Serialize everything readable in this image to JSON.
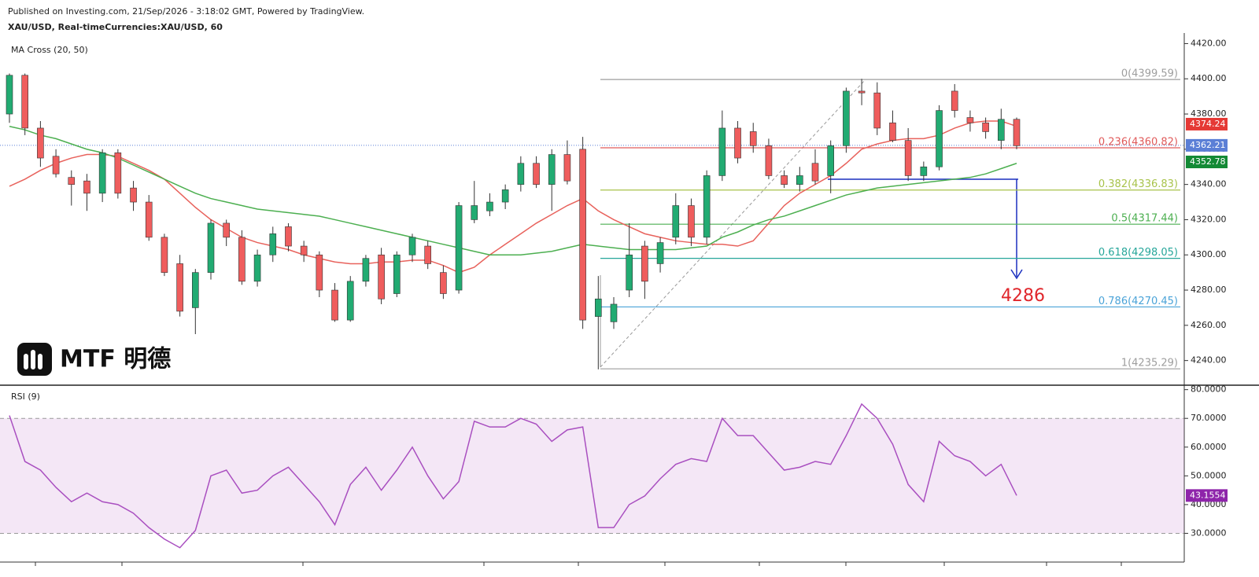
{
  "header": {
    "line1": "Published on Investing.com, 21/Sep/2026 - 3:18:02 GMT, Powered by TradingView.",
    "line2": "XAU/USD, Real-timeCurrencies:XAU/USD, 60"
  },
  "logo": "MTF 明德",
  "chart_data": [
    {
      "type": "candlestick",
      "title": "MA Cross (20, 50)",
      "ylim": [
        4226,
        4426
      ],
      "yticks": [
        {
          "value": 4420,
          "label": "4420.00"
        },
        {
          "value": 4400,
          "label": "4400.00"
        },
        {
          "value": 4380,
          "label": "4380.00"
        },
        {
          "value": 4360,
          "label": "4360.00"
        },
        {
          "value": 4340,
          "label": "4340.00"
        },
        {
          "value": 4320,
          "label": "4320.00"
        },
        {
          "value": 4300,
          "label": "4300.00"
        },
        {
          "value": 4280,
          "label": "4280.00"
        },
        {
          "value": 4260,
          "label": "4260.00"
        },
        {
          "value": 4240,
          "label": "4240.00"
        }
      ],
      "up_color": "#22ab72",
      "down_color": "#ef5d5d",
      "open": [
        4380,
        4402,
        4372,
        4356,
        4344,
        4342,
        4335,
        4358,
        4338,
        4330,
        4310,
        4295,
        4270,
        4290,
        4318,
        4310,
        4285,
        4300,
        4316,
        4305,
        4300,
        4280,
        4263,
        4285,
        4300,
        4278,
        4300,
        4305,
        4290,
        4280,
        4320,
        4325,
        4330,
        4340,
        4352,
        4340,
        4357,
        4360,
        4265,
        4262,
        4280,
        4305,
        4295,
        4310,
        4328,
        4310,
        4345,
        4372,
        4370,
        4362,
        4345,
        4340,
        4352,
        4345,
        4362,
        4393,
        4392,
        4375,
        4365,
        4345,
        4350,
        4393,
        4378,
        4375,
        4365,
        4377
      ],
      "high": [
        4403,
        4403,
        4376,
        4360,
        4348,
        4346,
        4360,
        4360,
        4342,
        4334,
        4312,
        4300,
        4292,
        4320,
        4320,
        4314,
        4303,
        4316,
        4318,
        4308,
        4302,
        4284,
        4288,
        4300,
        4304,
        4302,
        4312,
        4308,
        4294,
        4330,
        4342,
        4335,
        4340,
        4356,
        4356,
        4360,
        4365,
        4367,
        4288,
        4276,
        4318,
        4308,
        4310,
        4335,
        4332,
        4348,
        4382,
        4376,
        4375,
        4366,
        4348,
        4350,
        4360,
        4365,
        4395,
        4400,
        4398,
        4382,
        4372,
        4353,
        4385,
        4397,
        4382,
        4378,
        4383,
        4378
      ],
      "low": [
        4375,
        4368,
        4350,
        4344,
        4328,
        4325,
        4330,
        4332,
        4325,
        4308,
        4288,
        4265,
        4255,
        4286,
        4305,
        4283,
        4282,
        4296,
        4302,
        4296,
        4276,
        4262,
        4262,
        4282,
        4272,
        4276,
        4296,
        4292,
        4275,
        4278,
        4318,
        4322,
        4326,
        4336,
        4338,
        4325,
        4340,
        4258,
        4235,
        4258,
        4276,
        4275,
        4290,
        4306,
        4305,
        4306,
        4342,
        4352,
        4358,
        4343,
        4338,
        4336,
        4340,
        4335,
        4358,
        4385,
        4368,
        4364,
        4342,
        4342,
        4348,
        4378,
        4370,
        4366,
        4360,
        4360
      ],
      "close": [
        4402,
        4372,
        4355,
        4346,
        4340,
        4335,
        4358,
        4335,
        4330,
        4310,
        4290,
        4268,
        4290,
        4318,
        4310,
        4285,
        4300,
        4312,
        4305,
        4300,
        4280,
        4263,
        4285,
        4298,
        4275,
        4300,
        4310,
        4295,
        4278,
        4328,
        4328,
        4330,
        4337,
        4352,
        4340,
        4357,
        4342,
        4263,
        4275,
        4272,
        4300,
        4285,
        4307,
        4328,
        4310,
        4345,
        4372,
        4355,
        4362,
        4345,
        4340,
        4345,
        4342,
        4362,
        4393,
        4392,
        4372,
        4365,
        4345,
        4350,
        4382,
        4382,
        4375,
        4370,
        4377,
        4362
      ],
      "lines": [
        {
          "color": "#e8625c",
          "values": [
            4339,
            4343,
            4348,
            4352,
            4355,
            4357,
            4357,
            4356,
            4352,
            4348,
            4343,
            4335,
            4327,
            4320,
            4315,
            4310,
            4307,
            4305,
            4303,
            4300,
            4298,
            4296,
            4295,
            4295,
            4296,
            4296,
            4297,
            4297,
            4294,
            4290,
            4293,
            4300,
            4306,
            4312,
            4318,
            4323,
            4328,
            4332,
            4325,
            4320,
            4316,
            4312,
            4310,
            4308,
            4307,
            4306,
            4306,
            4305,
            4308,
            4318,
            4328,
            4335,
            4340,
            4345,
            4352,
            4360,
            4363,
            4365,
            4366,
            4366,
            4368,
            4372,
            4375,
            4376,
            4376,
            4373
          ]
        },
        {
          "color": "#4caf50",
          "values": [
            4373,
            4371,
            4368,
            4366,
            4363,
            4360,
            4358,
            4355,
            4351,
            4347,
            4343,
            4339,
            4335,
            4332,
            4330,
            4328,
            4326,
            4325,
            4324,
            4323,
            4322,
            4320,
            4318,
            4316,
            4314,
            4312,
            4310,
            4308,
            4306,
            4304,
            4302,
            4300,
            4300,
            4300,
            4301,
            4302,
            4304,
            4306,
            4305,
            4304,
            4303,
            4303,
            4303,
            4303,
            4304,
            4305,
            4310,
            4313,
            4317,
            4320,
            4322,
            4325,
            4328,
            4331,
            4334,
            4336,
            4338,
            4339,
            4340,
            4341,
            4342,
            4343,
            4344,
            4346,
            4349,
            4352
          ]
        }
      ],
      "fib_levels": [
        {
          "label": "0(4399.59)",
          "value": 4399.59,
          "color": "#9e9e9e"
        },
        {
          "label": "0.236(4360.82)",
          "value": 4360.82,
          "color": "#e05a5a"
        },
        {
          "label": "0.382(4336.83)",
          "value": 4336.83,
          "color": "#a8c34a"
        },
        {
          "label": "0.5(4317.44)",
          "value": 4317.44,
          "color": "#4caf50"
        },
        {
          "label": "0.618(4298.05)",
          "value": 4298.05,
          "color": "#26a69a"
        },
        {
          "label": "0.786(4270.45)",
          "value": 4270.45,
          "color": "#4aa3d8"
        },
        {
          "label": "1(4235.29)",
          "value": 4235.29,
          "color": "#9e9e9e"
        }
      ],
      "price_labels": [
        {
          "value": 4374.24,
          "color": "#e53935"
        },
        {
          "value": 4362.21,
          "color": "#5b7fd6"
        },
        {
          "value": 4352.78,
          "color": "#138a35"
        }
      ],
      "annotation": "4286"
    },
    {
      "type": "line",
      "title": "RSI (9)",
      "ylim": [
        20,
        81
      ],
      "yticks": [
        {
          "value": 80,
          "label": "80.0000"
        },
        {
          "value": 70,
          "label": "70.0000"
        },
        {
          "value": 60,
          "label": "60.0000"
        },
        {
          "value": 50,
          "label": "50.0000"
        },
        {
          "value": 40,
          "label": "40.0000"
        },
        {
          "value": 30,
          "label": "30.0000"
        }
      ],
      "band": [
        30,
        70
      ],
      "color": "#a94fc0",
      "values": [
        71,
        55,
        52,
        46,
        41,
        44,
        41,
        40,
        37,
        32,
        28,
        25,
        31,
        50,
        52,
        44,
        45,
        50,
        53,
        47,
        41,
        33,
        47,
        53,
        45,
        52,
        60,
        50,
        42,
        48,
        69,
        67,
        67,
        70,
        68,
        62,
        66,
        67,
        32,
        32,
        40,
        43,
        49,
        54,
        56,
        55,
        70,
        64,
        64,
        58,
        52,
        53,
        55,
        54,
        64,
        75,
        70,
        61,
        47,
        41,
        62,
        57,
        55,
        50,
        54,
        43.1554
      ],
      "last_label": {
        "value": 43.1554,
        "color": "#8e24aa"
      }
    }
  ]
}
